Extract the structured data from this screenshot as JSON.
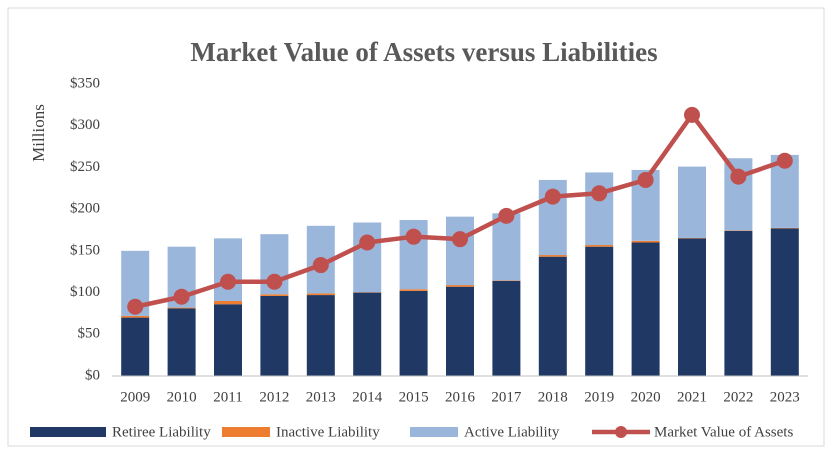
{
  "chart_data": {
    "type": "bar",
    "stacked": true,
    "title": "Market Value of Assets versus Liabilities",
    "y_axis_label": "Millions",
    "categories": [
      "2009",
      "2010",
      "2011",
      "2012",
      "2013",
      "2014",
      "2015",
      "2016",
      "2017",
      "2018",
      "2019",
      "2020",
      "2021",
      "2022",
      "2023"
    ],
    "series": [
      {
        "name": "Retiree Liability",
        "type": "bar",
        "color": "#203864",
        "values": [
          70,
          81,
          86,
          96,
          97,
          100,
          102,
          107,
          114,
          143,
          155,
          160,
          165,
          174,
          177
        ]
      },
      {
        "name": "Inactive Liability",
        "type": "bar",
        "color": "#ed7d31",
        "values": [
          2,
          1,
          4,
          2,
          2,
          0.5,
          2,
          2,
          0.5,
          2,
          2,
          2,
          0.5,
          0.5,
          0.5
        ]
      },
      {
        "name": "Active Liability",
        "type": "bar",
        "color": "#9ab6da",
        "values": [
          78,
          73,
          75,
          72,
          81,
          83.5,
          83,
          82,
          80.5,
          90,
          87,
          85,
          85.5,
          86.5,
          87.5
        ]
      },
      {
        "name": "Market Value of Assets",
        "type": "line",
        "color": "#c0504d",
        "values": [
          83,
          95,
          113,
          113,
          133,
          160,
          167,
          164,
          192,
          215,
          219,
          235,
          313,
          239,
          258
        ]
      }
    ],
    "ylim": [
      0,
      350
    ],
    "yticks": [
      {
        "value": 0,
        "label": "$0"
      },
      {
        "value": 50,
        "label": "$50"
      },
      {
        "value": 100,
        "label": "$100"
      },
      {
        "value": 150,
        "label": "$150"
      },
      {
        "value": 200,
        "label": "$200"
      },
      {
        "value": 250,
        "label": "$250"
      },
      {
        "value": 300,
        "label": "$300"
      },
      {
        "value": 350,
        "label": "$350"
      }
    ],
    "grid": false,
    "legend": "bottom"
  }
}
